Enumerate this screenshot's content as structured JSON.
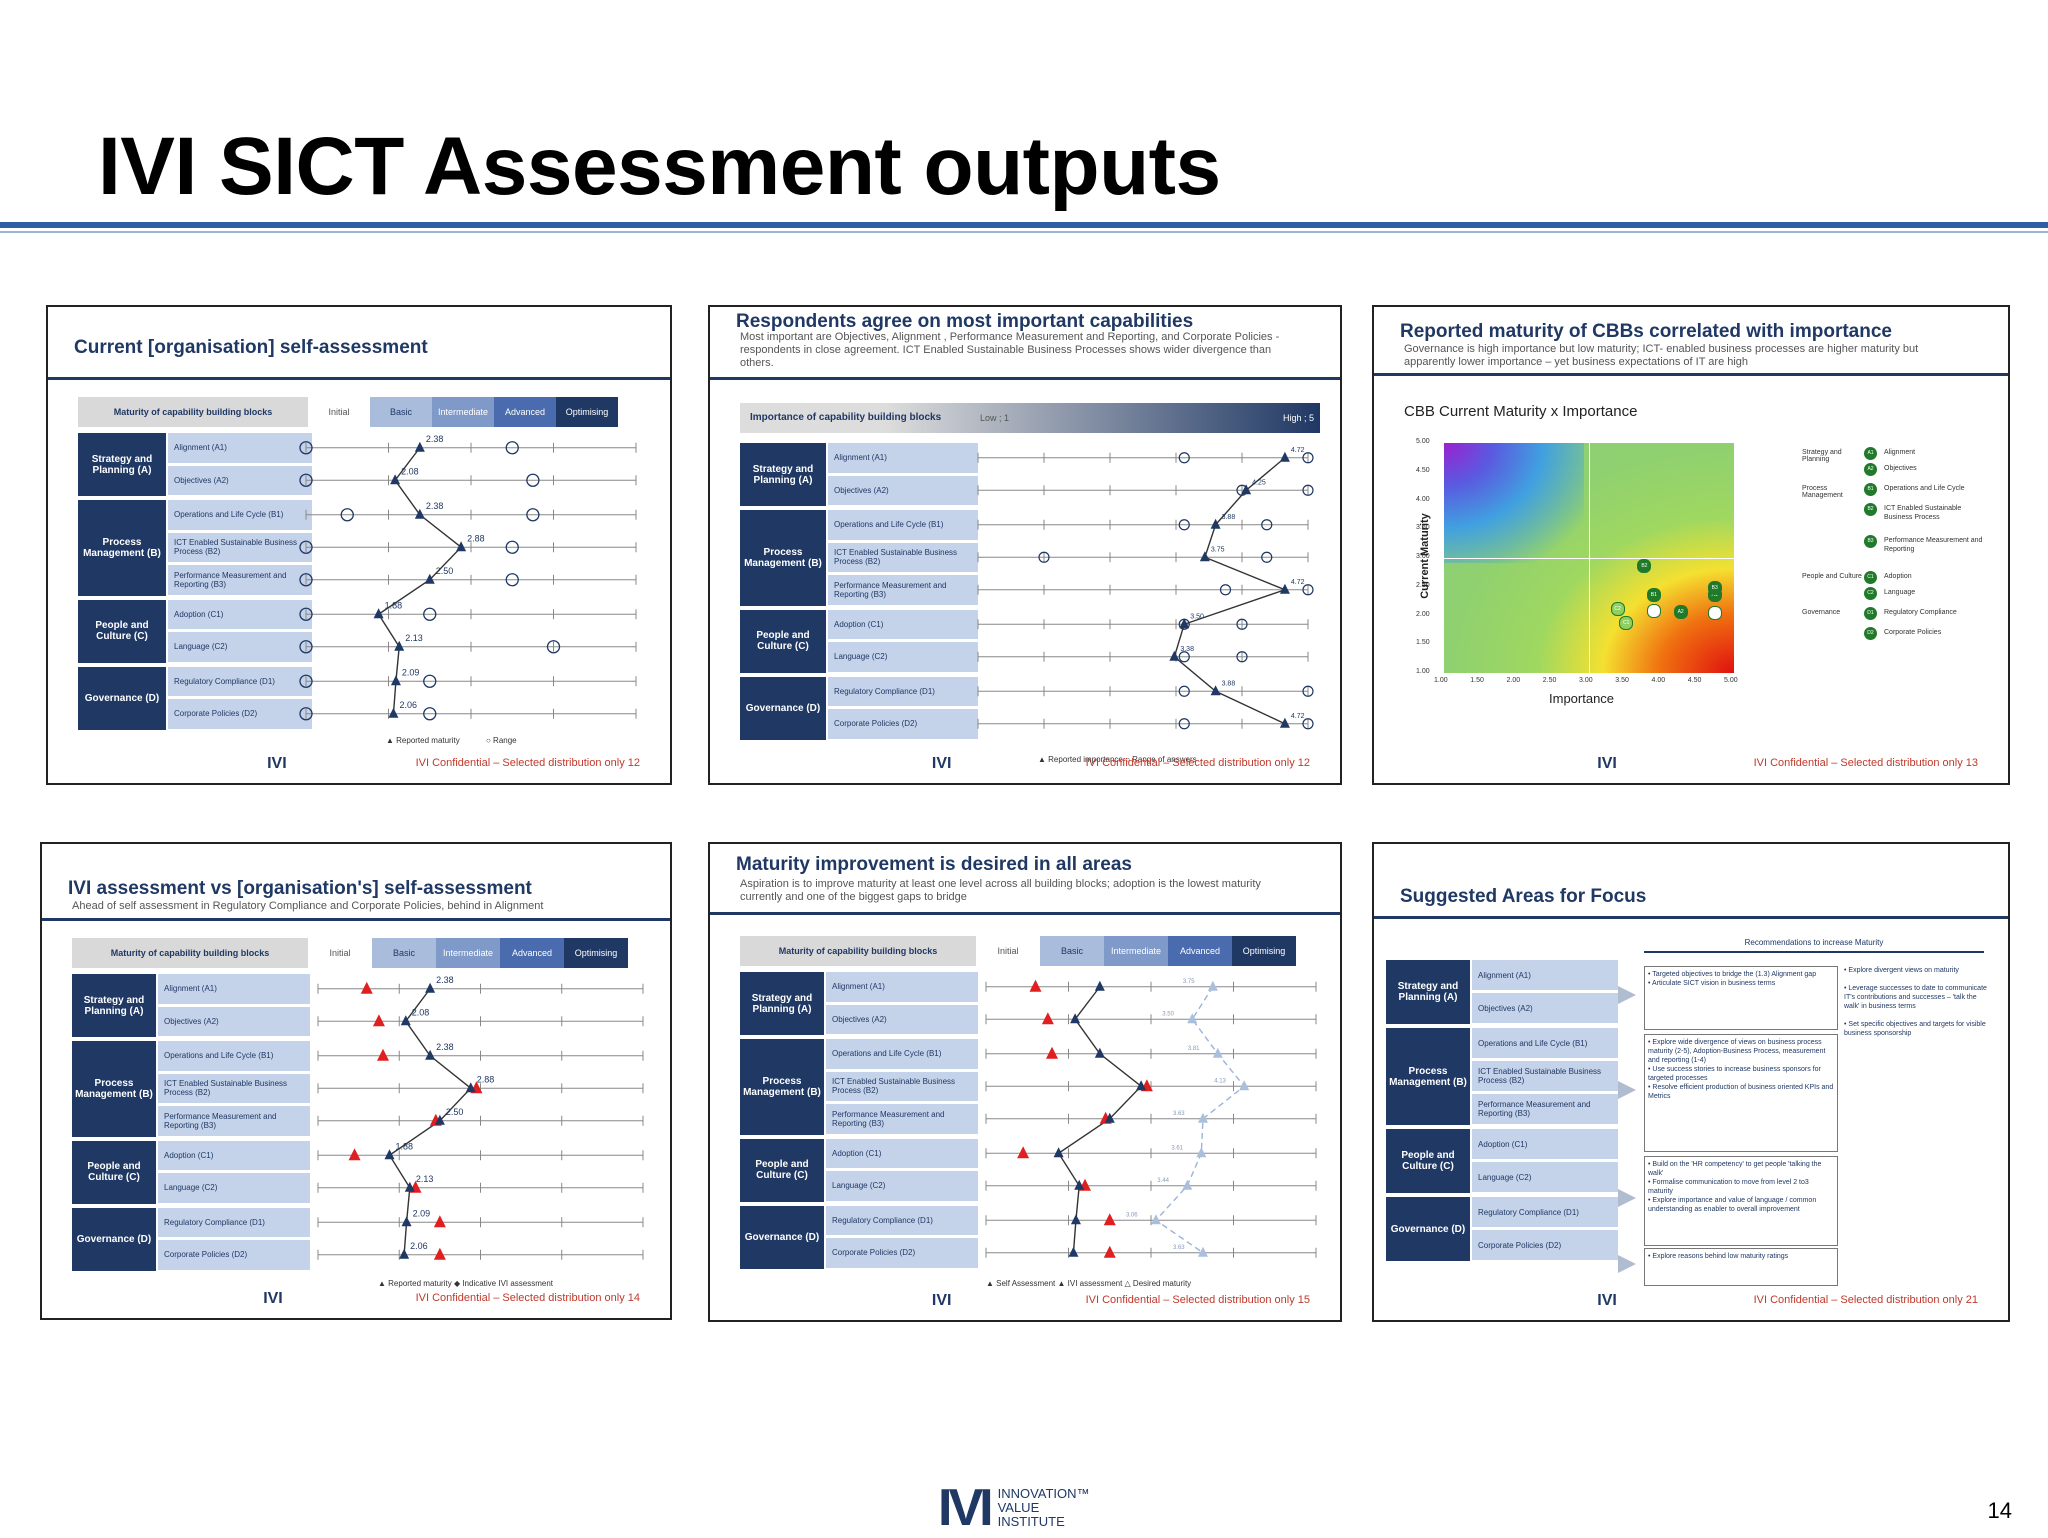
{
  "slide": {
    "title": "IVI SICT Assessment outputs",
    "page_number": "14",
    "logo_mark": "IVI",
    "logo_text": [
      "INNOVATION™",
      "VALUE",
      "INSTITUTE"
    ]
  },
  "common": {
    "scale_levels": [
      "Initial",
      "Basic",
      "Intermediate",
      "Advanced",
      "Optimising"
    ],
    "header_label": "Maturity of capability building blocks",
    "categories": [
      {
        "label": "Strategy and Planning (A)",
        "rows": [
          "Alignment (A1)",
          "Objectives (A2)"
        ]
      },
      {
        "label": "Process Management (B)",
        "rows": [
          "Operations and Life Cycle (B1)",
          "ICT Enabled Sustainable Business Process (B2)",
          "Performance Measurement and Reporting (B3)"
        ]
      },
      {
        "label": "People and Culture (C)",
        "rows": [
          "Adoption (C1)",
          "Language (C2)"
        ]
      },
      {
        "label": "Governance (D)",
        "rows": [
          "Regulatory Compliance (D1)",
          "Corporate Policies (D2)"
        ]
      }
    ],
    "footer": "IVI Confidential – Selected distribution only",
    "footer_logo": "IVI"
  },
  "thumbs": [
    {
      "title": "Current [organisation] self-assessment",
      "values": [
        2.38,
        2.08,
        2.38,
        2.88,
        2.5,
        1.88,
        2.13,
        2.09,
        2.06
      ],
      "value_labels": [
        "2.38",
        "2.08",
        "2.38",
        "2.88",
        "2.50",
        "1.88",
        "2.13",
        "2.09",
        "2.06"
      ],
      "legend": [
        "Reported maturity",
        "Range"
      ],
      "page": "12"
    },
    {
      "title": "Respondents agree on most important capabilities",
      "subtitle": "Most important are Objectives, Alignment , Performance Measurement and Reporting, and Corporate Policies - respondents in close agreement. ICT Enabled Sustainable Business Processes shows wider divergence than others.",
      "header_label": "Importance of capability building blocks",
      "scale_low": "Low ; 1",
      "scale_high": "High ; 5",
      "values": [
        4.72,
        4.25,
        3.88,
        3.75,
        4.72,
        3.5,
        3.38,
        3.88,
        4.72
      ],
      "value_labels": [
        "4.72",
        "4.25",
        "3.88",
        "3.75",
        "4.72",
        "3.50",
        "3.38",
        "3.88",
        "4.72"
      ],
      "legend": [
        "Reported importance",
        "Range of answers"
      ],
      "page": "12"
    },
    {
      "title": "Reported maturity of CBBs correlated with importance",
      "subtitle": "Governance is high importance but low maturity; ICT- enabled business processes are higher maturity but apparently lower importance – yet business expectations of IT are high",
      "chart_title": "CBB Current Maturity x Importance",
      "xlabel": "Importance",
      "ylabel": "Current Maturity",
      "ticks": [
        "1.00",
        "1.50",
        "2.00",
        "2.50",
        "3.00",
        "3.50",
        "4.00",
        "4.50",
        "5.00"
      ],
      "legend_groups": [
        {
          "label": "Strategy and Planning",
          "items": [
            [
              "A1",
              "Alignment"
            ],
            [
              "A2",
              "Objectives"
            ]
          ]
        },
        {
          "label": "Process Management",
          "items": [
            [
              "B1",
              "Operations and Life Cycle"
            ],
            [
              "B2",
              "ICT Enabled Sustainable Business Process"
            ],
            [
              "B3",
              "Performance Measurement and Reporting"
            ]
          ]
        },
        {
          "label": "People and Culture",
          "items": [
            [
              "C1",
              "Adoption"
            ],
            [
              "C2",
              "Language"
            ]
          ]
        },
        {
          "label": "Governance",
          "items": [
            [
              "D1",
              "Regulatory Compliance"
            ],
            [
              "D2",
              "Corporate Policies"
            ]
          ]
        }
      ],
      "page": "13"
    },
    {
      "title": "IVI assessment vs [organisation's] self-assessment",
      "subtitle": "Ahead of self assessment in Regulatory Compliance and Corporate Policies, behind in Alignment",
      "values": [
        2.38,
        2.08,
        2.38,
        2.88,
        2.5,
        1.88,
        2.13,
        2.09,
        2.06
      ],
      "value_labels": [
        "2.38",
        "2.08",
        "2.38",
        "2.88",
        "2.50",
        "1.88",
        "2.13",
        "2.09",
        "2.06"
      ],
      "ivi": [
        1.6,
        1.75,
        1.8,
        2.95,
        2.45,
        1.45,
        2.2,
        2.5,
        2.5
      ],
      "legend": [
        "Reported maturity",
        "Indicative IVI assessment"
      ],
      "page": "14"
    },
    {
      "title": "Maturity improvement is desired in all areas",
      "subtitle": "Aspiration is to improve maturity at least one level across all building blocks; adoption is the lowest maturity currently and one of the biggest gaps to bridge",
      "self": [
        2.38,
        2.08,
        2.38,
        2.88,
        2.5,
        1.88,
        2.13,
        2.09,
        2.06
      ],
      "ivi": [
        1.6,
        1.75,
        1.8,
        2.95,
        2.45,
        1.45,
        2.2,
        2.5,
        2.5
      ],
      "desired": [
        3.75,
        3.5,
        3.81,
        4.13,
        3.63,
        3.61,
        3.44,
        3.06,
        3.63
      ],
      "desired_labels": [
        "3.75",
        "3.50",
        "3.81",
        "4.13",
        "3.63",
        "3.61",
        "3.44",
        "3.06",
        "3.63"
      ],
      "legend": [
        "Self Assessment",
        "IVI assessment",
        "Desired maturity"
      ],
      "page": "15"
    },
    {
      "title": "Suggested Areas for Focus",
      "header": "Recommendations to increase Maturity",
      "boxes": [
        "• Targeted objectives to bridge the (1.3) Alignment gap\n• Articulate SICT vision in business terms",
        "• Explore wide divergence of views on business process maturity (2-5), Adoption-Business Process, measurement and reporting (1-4)\n• Use success stories to increase business sponsors for targeted processes\n• Resolve efficient production of business oriented KPIs and Metrics",
        "• Build on the 'HR competency' to get people 'talking the walk'\n• Formalise communication to move from level 2 to3 maturity\n• Explore importance and value of language / common understanding as enabler to overall improvement",
        "• Explore reasons behind low maturity ratings"
      ],
      "side_box": "• Explore divergent views on maturity\n\n• Leverage successes to date to communicate IT's contributions and successes – 'talk the walk' in business terms\n\n• Set specific objectives and targets for visible business sponsorship",
      "page": "21"
    }
  ]
}
